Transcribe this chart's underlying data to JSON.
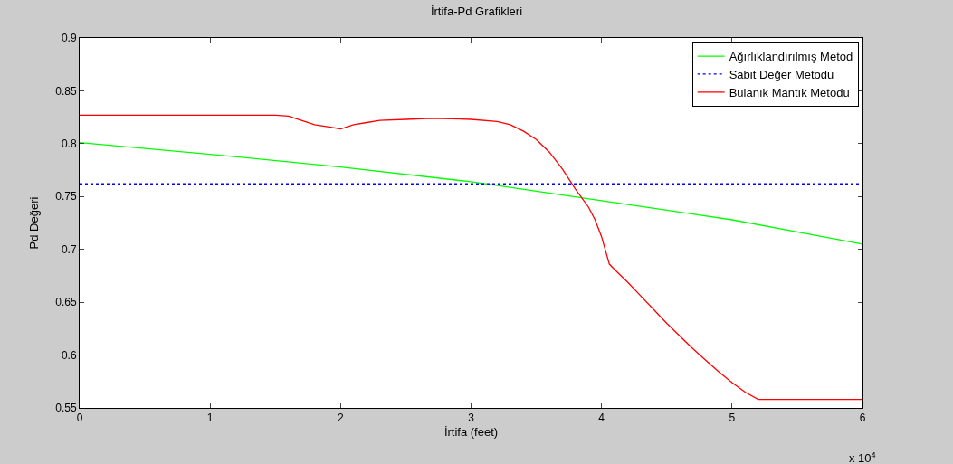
{
  "chart_data": {
    "type": "line",
    "title": "İrtifa-Pd Grafikleri",
    "xlabel": "İrtifa (feet)",
    "ylabel": "Pd Değeri",
    "xlim": [
      0,
      6
    ],
    "xticks": [
      0,
      1,
      2,
      3,
      4,
      5,
      6
    ],
    "ylim": [
      0.55,
      0.9
    ],
    "yticks": [
      0.55,
      0.6,
      0.65,
      0.7,
      0.75,
      0.8,
      0.85,
      0.9
    ],
    "annotations": [
      "x 10$^{4}$"
    ],
    "legend": "top right",
    "marker": "none",
    "series": [
      {
        "name": "Ağırlıklandırılmış Metod",
        "color": "#00ff00",
        "line_style": "solid",
        "x": [
          0,
          1,
          2,
          3,
          4,
          5,
          6
        ],
        "values": [
          0.801,
          0.79,
          0.778,
          0.764,
          0.746,
          0.728,
          0.705
        ]
      },
      {
        "name": "Sabit Değer Metodu",
        "color": "#0000ff",
        "line_style": "dotted",
        "x": [
          0,
          6
        ],
        "values": [
          0.762,
          0.762
        ]
      },
      {
        "name": "Bulanık Mantık Metodu",
        "color": "#ff0000",
        "line_style": "solid",
        "x": [
          0,
          1.5,
          1.6,
          1.7,
          1.8,
          1.9,
          2.0,
          2.1,
          2.2,
          2.3,
          2.5,
          2.7,
          3.0,
          3.2,
          3.3,
          3.4,
          3.5,
          3.6,
          3.7,
          3.8,
          3.9,
          3.95,
          4.0,
          4.06,
          4.1,
          4.2,
          4.3,
          4.4,
          4.5,
          4.6,
          4.7,
          4.8,
          4.9,
          5.0,
          5.1,
          5.2,
          6.0
        ],
        "values": [
          0.827,
          0.827,
          0.826,
          0.822,
          0.818,
          0.816,
          0.814,
          0.818,
          0.82,
          0.822,
          0.823,
          0.824,
          0.823,
          0.821,
          0.818,
          0.812,
          0.804,
          0.792,
          0.776,
          0.757,
          0.74,
          0.728,
          0.712,
          0.686,
          0.681,
          0.669,
          0.656,
          0.643,
          0.63,
          0.618,
          0.606,
          0.595,
          0.584,
          0.574,
          0.565,
          0.558,
          0.558
        ]
      }
    ]
  }
}
